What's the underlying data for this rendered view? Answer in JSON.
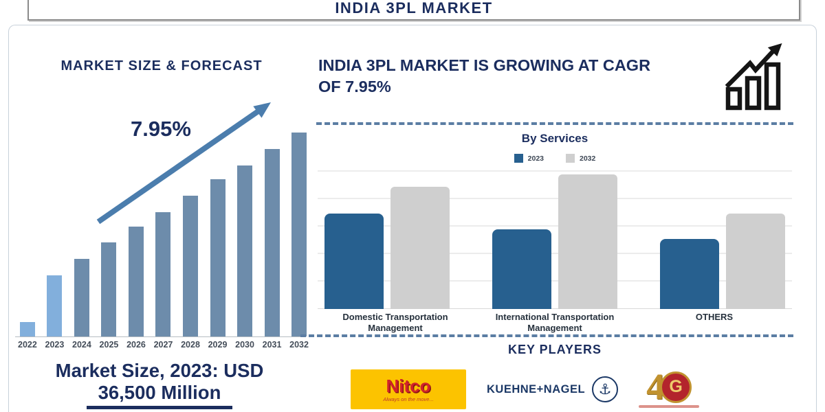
{
  "header": {
    "title": "INDIA 3PL MARKET"
  },
  "left_section": {
    "heading": "MARKET SIZE & FORECAST",
    "growth_annotation": "7.95%",
    "market_size_line1": "Market Size, 2023: USD",
    "market_size_line2": "36,500 Million"
  },
  "right_section": {
    "headline_line1": "INDIA 3PL MARKET IS GROWING AT CAGR",
    "headline_line2": "OF 7.95%",
    "services_chart_title": "By Services",
    "key_players_title": "KEY PLAYERS",
    "key_players": [
      {
        "name": "Nitco",
        "tagline": "Always on the move..."
      },
      {
        "name": "KUEHNE+NAGEL",
        "icon": "anchor-icon"
      },
      {
        "numeral": "4",
        "emblem_letter": "G",
        "icon": "gati-40-years-emblem"
      }
    ]
  },
  "colors": {
    "navy_text": "#1B2D5E",
    "forecast_bar": "#6D8CAB",
    "forecast_bar_highlight": "#82AFDC",
    "trend_arrow": "#4B7DAD",
    "services_2023_bar": "#27608F",
    "services_2032_bar": "#CFCFCF",
    "dashed_divider": "#5B7DA3",
    "nitco_yellow": "#FCC300",
    "nitco_red": "#D2232A",
    "kuehne_nagel_navy": "#1B3866",
    "gati_gold": "#C1922F",
    "gati_red": "#B3242C"
  },
  "chart_data": [
    {
      "type": "bar",
      "title": "MARKET SIZE & FORECAST",
      "categories": [
        "2022",
        "2023",
        "2024",
        "2025",
        "2026",
        "2027",
        "2028",
        "2029",
        "2030",
        "2031",
        "2032"
      ],
      "values": [
        7,
        30,
        38,
        46,
        54,
        61,
        69,
        77,
        84,
        92,
        100
      ],
      "values_unit": "relative bar height, no numeric axis shown",
      "known_value": "Market Size 2023 = USD 36,500 Million",
      "annotation": "7.95%",
      "highlight_categories": [
        "2022",
        "2023"
      ],
      "bar_color": "#6D8CAB",
      "highlight_color": "#82AFDC",
      "xlabel": "",
      "ylabel": "",
      "grid": false,
      "legend": "none"
    },
    {
      "type": "bar",
      "title": "By Services",
      "categories": [
        "Domestic Transportation Management",
        "International Transportation Management",
        "OTHERS"
      ],
      "series": [
        {
          "name": "2023",
          "color": "#27608F",
          "values": [
            71,
            59,
            52
          ]
        },
        {
          "name": "2032",
          "color": "#CFCFCF",
          "values": [
            91,
            100,
            71
          ]
        }
      ],
      "values_unit": "relative bar height, no numeric axis shown",
      "grid": true,
      "legend_position": "top"
    }
  ]
}
